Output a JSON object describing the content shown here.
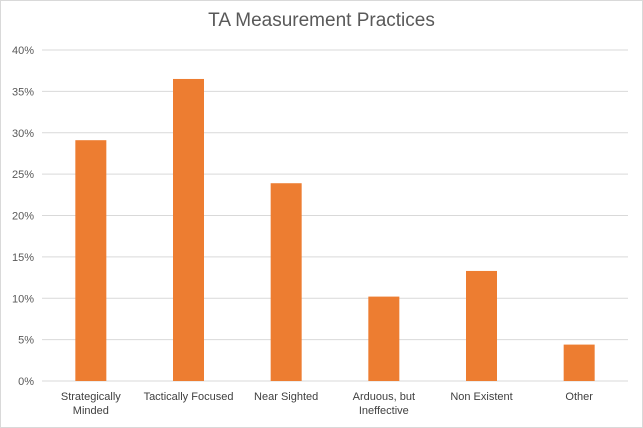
{
  "chart_data": {
    "type": "bar",
    "title": "TA Measurement Practices",
    "categories": [
      [
        "Strategically",
        "Minded"
      ],
      [
        "Tactically Focused"
      ],
      [
        "Near Sighted"
      ],
      [
        "Arduous, but",
        "Ineffective"
      ],
      [
        "Non Existent"
      ],
      [
        "Other"
      ]
    ],
    "values": [
      29.1,
      36.5,
      23.9,
      10.2,
      13.3,
      4.4
    ],
    "yticks": [
      "0%",
      "5%",
      "10%",
      "15%",
      "20%",
      "25%",
      "30%",
      "35%",
      "40%"
    ],
    "ylim": [
      0,
      40
    ],
    "grid": true,
    "bar_color": "#ed7d31",
    "grid_color": "#d9d9d9"
  }
}
